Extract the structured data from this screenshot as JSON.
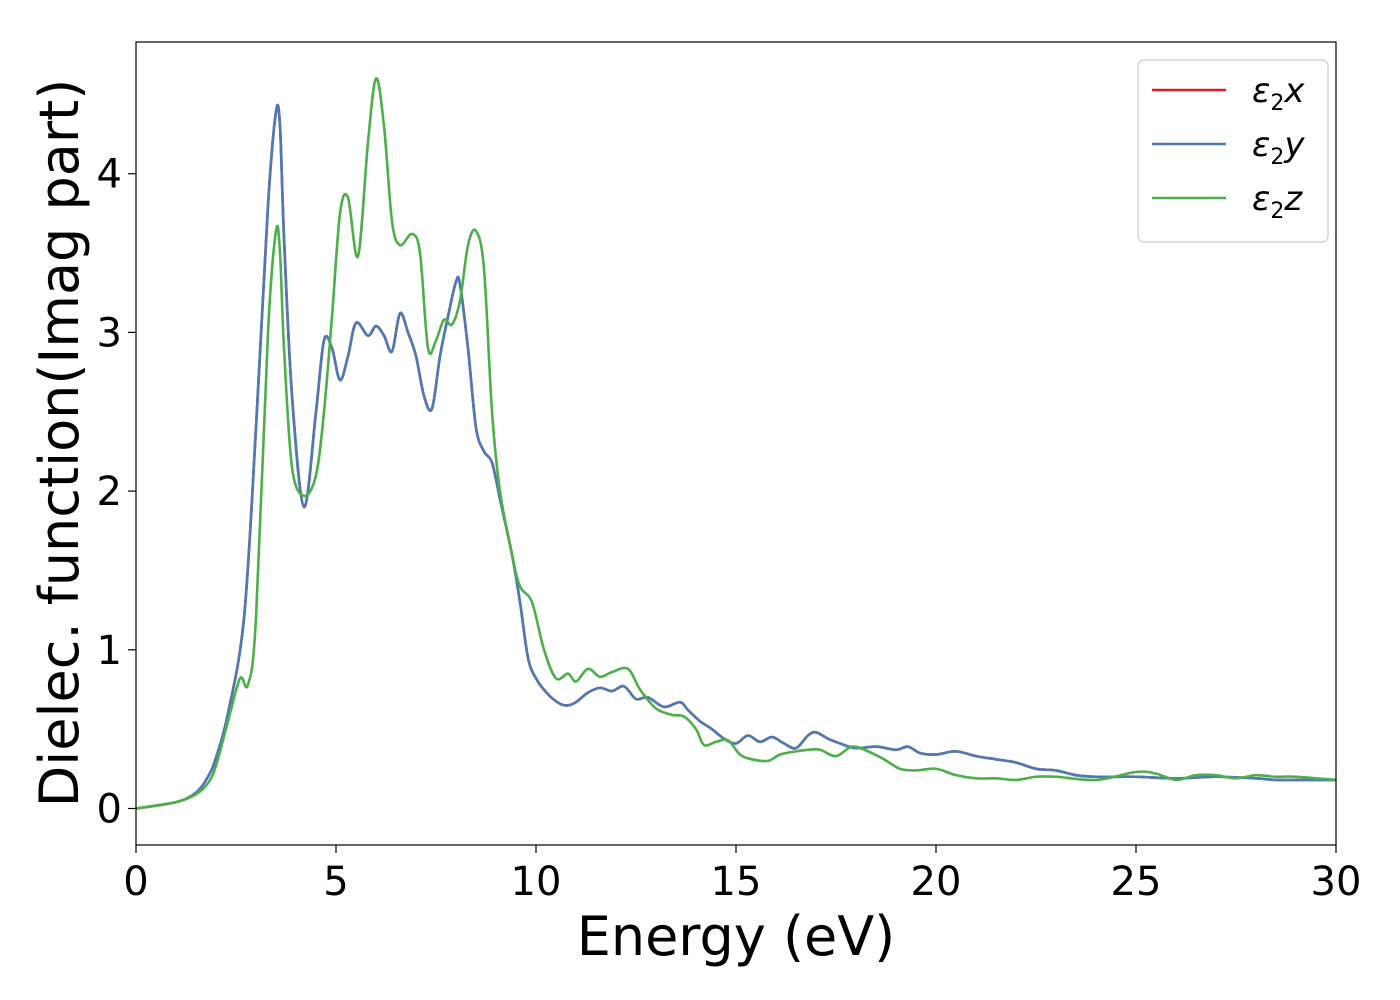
{
  "chart_data": {
    "type": "line",
    "xlabel": "Energy (eV)",
    "ylabel": "Dielec. function(Imag part)",
    "xlim": [
      0,
      30
    ],
    "ylim": [
      -0.23,
      4.83
    ],
    "xticks": [
      0,
      5,
      10,
      15,
      20,
      25,
      30
    ],
    "yticks": [
      0,
      1,
      2,
      3,
      4
    ],
    "grid": false,
    "legend_position": "top-right",
    "series": [
      {
        "name": "ε2x",
        "symbol": "ε",
        "subscript": "2",
        "suffix": "x",
        "color": "#e41a1c",
        "x": [
          0,
          1,
          1.5,
          1.8,
          2.0,
          2.3,
          2.7,
          3.0,
          3.3,
          3.5,
          3.6,
          3.7,
          3.9,
          4.2,
          4.5,
          4.7,
          4.9,
          5.1,
          5.3,
          5.5,
          5.8,
          6.0,
          6.2,
          6.4,
          6.6,
          6.8,
          7.0,
          7.2,
          7.4,
          7.6,
          7.8,
          8.0,
          8.1,
          8.3,
          8.5,
          8.7,
          8.9,
          9.1,
          9.4,
          9.6,
          9.8,
          10.0,
          10.3,
          10.6,
          10.8,
          11.0,
          11.3,
          11.6,
          11.9,
          12.2,
          12.5,
          12.8,
          13.2,
          13.6,
          13.8,
          14.1,
          14.4,
          14.7,
          15.0,
          15.3,
          15.6,
          15.9,
          16.2,
          16.5,
          16.8,
          17.0,
          17.3,
          17.6,
          18.0,
          18.5,
          19.0,
          19.3,
          19.6,
          20.0,
          20.5,
          21.0,
          21.5,
          22.0,
          22.5,
          23.0,
          23.5,
          24.0,
          25.0,
          26.0,
          27.0,
          28.0,
          28.5,
          29.0,
          30.0
        ],
        "values": [
          0,
          0.04,
          0.1,
          0.2,
          0.32,
          0.6,
          1.2,
          2.4,
          3.8,
          4.39,
          4.3,
          3.6,
          2.6,
          1.9,
          2.5,
          2.95,
          2.9,
          2.7,
          2.85,
          3.06,
          2.98,
          3.04,
          2.98,
          2.88,
          3.12,
          3.0,
          2.85,
          2.6,
          2.52,
          2.85,
          3.1,
          3.32,
          3.3,
          2.9,
          2.4,
          2.25,
          2.18,
          1.95,
          1.6,
          1.3,
          0.95,
          0.82,
          0.72,
          0.66,
          0.65,
          0.67,
          0.73,
          0.76,
          0.74,
          0.77,
          0.69,
          0.7,
          0.64,
          0.67,
          0.62,
          0.55,
          0.5,
          0.44,
          0.41,
          0.46,
          0.42,
          0.45,
          0.41,
          0.38,
          0.46,
          0.48,
          0.44,
          0.41,
          0.38,
          0.39,
          0.37,
          0.39,
          0.35,
          0.34,
          0.36,
          0.33,
          0.31,
          0.29,
          0.25,
          0.24,
          0.21,
          0.2,
          0.2,
          0.19,
          0.2,
          0.19,
          0.18,
          0.18,
          0.18
        ]
      },
      {
        "name": "ε2y",
        "symbol": "ε",
        "subscript": "2",
        "suffix": "y",
        "color": "#4a7bb7",
        "x": [
          0,
          1,
          1.5,
          1.8,
          2.0,
          2.3,
          2.7,
          3.0,
          3.3,
          3.5,
          3.6,
          3.7,
          3.9,
          4.2,
          4.5,
          4.7,
          4.9,
          5.1,
          5.3,
          5.5,
          5.8,
          6.0,
          6.2,
          6.4,
          6.6,
          6.8,
          7.0,
          7.2,
          7.4,
          7.6,
          7.8,
          8.0,
          8.1,
          8.3,
          8.5,
          8.7,
          8.9,
          9.1,
          9.4,
          9.6,
          9.8,
          10.0,
          10.3,
          10.6,
          10.8,
          11.0,
          11.3,
          11.6,
          11.9,
          12.2,
          12.5,
          12.8,
          13.2,
          13.6,
          13.8,
          14.1,
          14.4,
          14.7,
          15.0,
          15.3,
          15.6,
          15.9,
          16.2,
          16.5,
          16.8,
          17.0,
          17.3,
          17.6,
          18.0,
          18.5,
          19.0,
          19.3,
          19.6,
          20.0,
          20.5,
          21.0,
          21.5,
          22.0,
          22.5,
          23.0,
          23.5,
          24.0,
          25.0,
          26.0,
          27.0,
          28.0,
          28.5,
          29.0,
          30.0
        ],
        "values": [
          0,
          0.04,
          0.1,
          0.2,
          0.32,
          0.6,
          1.2,
          2.4,
          3.8,
          4.39,
          4.3,
          3.6,
          2.6,
          1.9,
          2.5,
          2.95,
          2.9,
          2.7,
          2.85,
          3.06,
          2.98,
          3.04,
          2.98,
          2.88,
          3.12,
          3.0,
          2.85,
          2.6,
          2.52,
          2.85,
          3.1,
          3.32,
          3.3,
          2.9,
          2.4,
          2.25,
          2.18,
          1.95,
          1.6,
          1.3,
          0.95,
          0.82,
          0.72,
          0.66,
          0.65,
          0.67,
          0.73,
          0.76,
          0.74,
          0.77,
          0.69,
          0.7,
          0.64,
          0.67,
          0.62,
          0.55,
          0.5,
          0.44,
          0.41,
          0.46,
          0.42,
          0.45,
          0.41,
          0.38,
          0.46,
          0.48,
          0.44,
          0.41,
          0.38,
          0.39,
          0.37,
          0.39,
          0.35,
          0.34,
          0.36,
          0.33,
          0.31,
          0.29,
          0.25,
          0.24,
          0.21,
          0.2,
          0.2,
          0.19,
          0.2,
          0.19,
          0.18,
          0.18,
          0.18
        ]
      },
      {
        "name": "ε2z",
        "symbol": "ε",
        "subscript": "2",
        "suffix": "z",
        "color": "#4daf4a",
        "x": [
          0,
          1,
          1.5,
          1.8,
          2.0,
          2.3,
          2.6,
          2.8,
          3.0,
          3.3,
          3.5,
          3.6,
          3.7,
          3.9,
          4.2,
          4.5,
          4.7,
          4.9,
          5.1,
          5.3,
          5.55,
          5.8,
          6.0,
          6.2,
          6.4,
          6.6,
          6.9,
          7.1,
          7.3,
          7.5,
          7.7,
          7.9,
          8.1,
          8.3,
          8.5,
          8.7,
          8.9,
          9.1,
          9.4,
          9.6,
          9.9,
          10.2,
          10.5,
          10.8,
          11.0,
          11.3,
          11.6,
          11.9,
          12.3,
          12.6,
          13.0,
          13.4,
          13.7,
          14.0,
          14.2,
          14.5,
          14.8,
          15.1,
          15.4,
          15.8,
          16.1,
          16.5,
          16.8,
          17.1,
          17.5,
          17.9,
          18.3,
          18.7,
          19.1,
          19.5,
          20.0,
          20.5,
          21.0,
          21.5,
          22.0,
          22.5,
          23.0,
          24.0,
          25.0,
          25.5,
          26.0,
          26.5,
          27.0,
          27.5,
          28.0,
          28.5,
          29.0,
          30.0
        ],
        "values": [
          0,
          0.04,
          0.09,
          0.16,
          0.27,
          0.55,
          0.82,
          0.78,
          1.2,
          3.0,
          3.64,
          3.5,
          2.9,
          2.15,
          1.97,
          2.1,
          2.5,
          3.1,
          3.75,
          3.85,
          3.48,
          4.2,
          4.6,
          4.3,
          3.7,
          3.55,
          3.62,
          3.5,
          2.9,
          2.95,
          3.08,
          3.05,
          3.2,
          3.55,
          3.64,
          3.4,
          2.5,
          2.0,
          1.6,
          1.4,
          1.3,
          1.0,
          0.82,
          0.85,
          0.8,
          0.88,
          0.83,
          0.86,
          0.88,
          0.75,
          0.63,
          0.59,
          0.58,
          0.5,
          0.4,
          0.42,
          0.43,
          0.34,
          0.31,
          0.3,
          0.34,
          0.36,
          0.37,
          0.37,
          0.33,
          0.39,
          0.36,
          0.31,
          0.25,
          0.24,
          0.25,
          0.21,
          0.19,
          0.19,
          0.18,
          0.2,
          0.2,
          0.18,
          0.23,
          0.22,
          0.18,
          0.21,
          0.21,
          0.19,
          0.21,
          0.2,
          0.2,
          0.18
        ]
      }
    ]
  }
}
